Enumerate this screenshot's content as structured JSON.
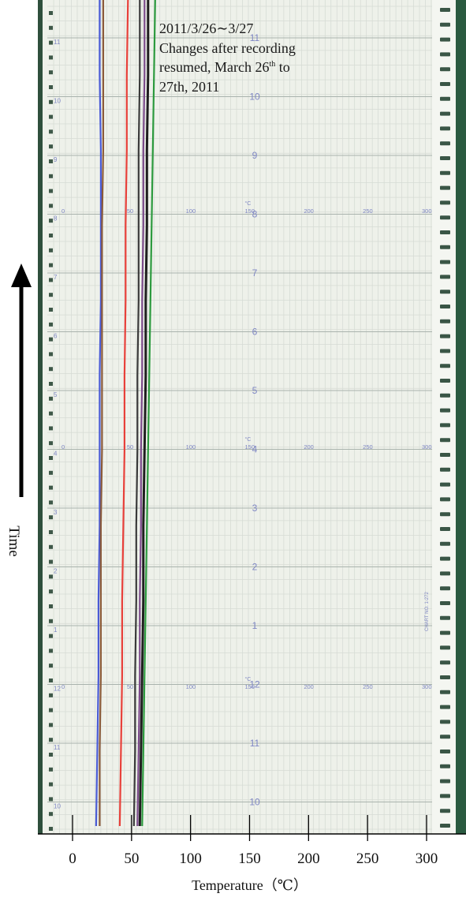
{
  "annotation": {
    "line1": "2011/3/26∼3/27",
    "line2": "Changes after recording",
    "line3a": "resumed, March 26",
    "line3sup": "th",
    "line3b": " to",
    "line4": "27th, 2011"
  },
  "chart_data": {
    "type": "line",
    "xlabel": "Temperature（℃）",
    "ylabel": "Time",
    "xlim": [
      -28,
      322
    ],
    "x_ticks": [
      0,
      50,
      100,
      150,
      200,
      250,
      300
    ],
    "paper_scale_labels": [
      "0",
      "50",
      "100",
      "150",
      "200",
      "250",
      "300"
    ],
    "paper_unit": "°C",
    "paper_hour_marks": [
      "11",
      "10",
      "9",
      "8",
      "7",
      "6",
      "5",
      "4",
      "3",
      "2",
      "1",
      "12",
      "11",
      "10"
    ],
    "paper_side_hour_marks": [
      "11",
      "10",
      "9",
      "8",
      "7",
      "6",
      "5",
      "4",
      "3",
      "2",
      "1",
      "12",
      "11",
      "10"
    ],
    "paper_chart_no": "CHART NO. 1-272",
    "series": [
      {
        "color": "#4a5bd6",
        "values": [
          20,
          21,
          22,
          22,
          23,
          23,
          23,
          24,
          24,
          24,
          23,
          23
        ]
      },
      {
        "color": "#8a5a3a",
        "values": [
          23,
          23,
          24,
          24,
          24,
          25,
          25,
          25,
          25,
          26,
          26,
          26
        ]
      },
      {
        "color": "#e8403a",
        "values": [
          40,
          41,
          42,
          42,
          43,
          44,
          44,
          45,
          45,
          46,
          46,
          47
        ]
      },
      {
        "color": "#3a3a3a",
        "values": [
          52,
          53,
          53,
          54,
          54,
          55,
          55,
          56,
          56,
          56,
          57,
          57
        ]
      },
      {
        "color": "#7b4a8a",
        "values": [
          55,
          56,
          57,
          57,
          58,
          58,
          59,
          59,
          60,
          60,
          61,
          61
        ]
      },
      {
        "color": "#1f1f1f",
        "values": [
          57,
          58,
          59,
          60,
          60,
          61,
          62,
          62,
          63,
          63,
          64,
          64
        ]
      },
      {
        "color": "#2c9a3e",
        "values": [
          59,
          60,
          61,
          62,
          63,
          64,
          65,
          66,
          67,
          68,
          69,
          70
        ]
      }
    ]
  }
}
